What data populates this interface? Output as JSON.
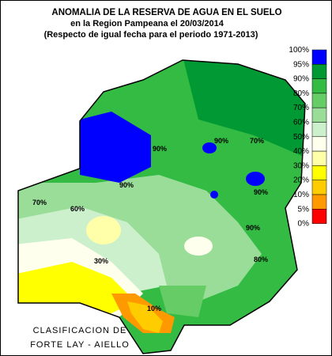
{
  "header": {
    "title": "ANOMALIA DE LA RESERVA DE AGUA EN EL SUELO",
    "line2": "en la Region Pampeana el  20/03/2014",
    "line3": "(Respecto de igual fecha para el periodo 1971-2013)"
  },
  "legend": {
    "labels": [
      "100%",
      "95%",
      "90%",
      "80%",
      "70%",
      "60%",
      "50%",
      "40%",
      "30%",
      "20%",
      "10%",
      "5%",
      "0%"
    ],
    "colors": [
      "#0000ff",
      "#009933",
      "#33bb44",
      "#66cc66",
      "#99dd99",
      "#ccf0cc",
      "#ffffee",
      "#ffffaa",
      "#ffff00",
      "#ffcc00",
      "#ff9900",
      "#ff0000"
    ]
  },
  "credit": {
    "line1": "CLASIFICACION DE",
    "line2": "FORTE LAY - AIELLO"
  },
  "map_labels": [
    "90%",
    "90%",
    "70%",
    "60%",
    "90%",
    "70%",
    "30%",
    "10%",
    "90%",
    "80%",
    "90%"
  ]
}
